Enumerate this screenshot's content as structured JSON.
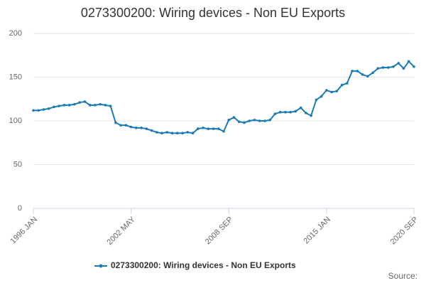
{
  "chart_data": {
    "type": "line",
    "title": "0273300200: Wiring devices - Non EU Exports",
    "categories": [
      "1996 JAN",
      null,
      null,
      null,
      null,
      null,
      null,
      null,
      null,
      null,
      null,
      null,
      null,
      null,
      null,
      null,
      null,
      null,
      null,
      "2002 MAY",
      null,
      null,
      null,
      null,
      null,
      null,
      null,
      null,
      null,
      null,
      null,
      null,
      null,
      null,
      null,
      null,
      null,
      null,
      "2008 SEP",
      null,
      null,
      null,
      null,
      null,
      null,
      null,
      null,
      null,
      null,
      null,
      null,
      null,
      null,
      null,
      null,
      null,
      null,
      "2015 JAN",
      null,
      null,
      null,
      null,
      null,
      null,
      null,
      null,
      null,
      null,
      null,
      null,
      null,
      null,
      null,
      null,
      "2020 SEP"
    ],
    "series": [
      {
        "name": "0273300200: Wiring devices - Non EU Exports",
        "color": "#1a7ab5",
        "values": [
          112,
          112,
          113,
          114,
          116,
          117,
          118,
          118,
          119,
          121,
          122,
          118,
          118,
          119,
          118,
          117,
          98,
          95,
          95,
          93,
          92,
          92,
          91,
          89,
          87,
          86,
          87,
          86,
          86,
          86,
          87,
          86,
          91,
          92,
          91,
          91,
          91,
          88,
          101,
          104,
          99,
          98,
          100,
          101,
          100,
          100,
          101,
          108,
          110,
          110,
          110,
          111,
          115,
          109,
          106,
          124,
          128,
          135,
          133,
          134,
          141,
          143,
          157,
          157,
          153,
          151,
          155,
          160,
          161,
          161,
          162,
          166,
          160,
          168,
          162
        ]
      }
    ],
    "ylim": [
      0,
      200
    ],
    "yticks": [
      0,
      50,
      100,
      150,
      200
    ],
    "grid": true,
    "source": "Source:"
  }
}
